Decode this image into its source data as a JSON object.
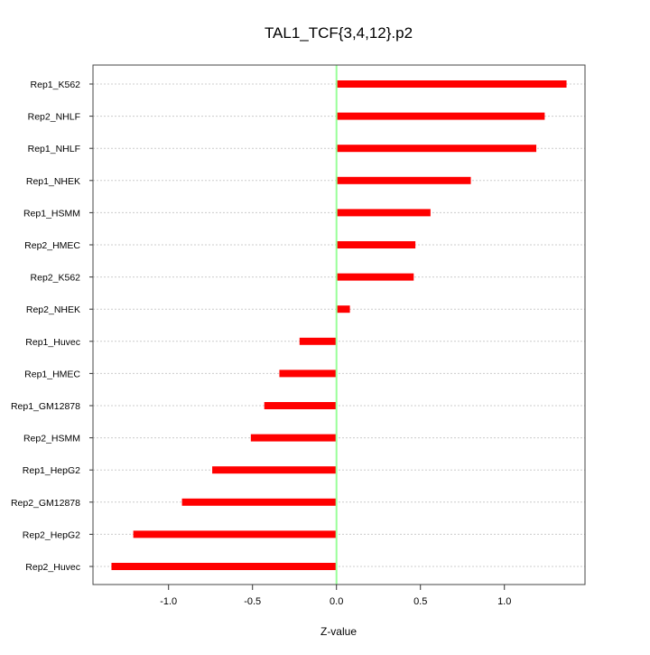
{
  "chart_data": {
    "type": "bar",
    "orientation": "horizontal",
    "title": "TAL1_TCF{3,4,12}.p2",
    "xlabel": "Z-value",
    "ylabel": "",
    "xlim": [
      -1.45,
      1.48
    ],
    "xticks": [
      -1.0,
      -0.5,
      0.0,
      0.5,
      1.0
    ],
    "xtick_labels": [
      "-1.0",
      "-0.5",
      "0.0",
      "0.5",
      "1.0"
    ],
    "grid": "horizontal dotted",
    "reference_line": 0,
    "categories": [
      "Rep1_K562",
      "Rep2_NHLF",
      "Rep1_NHLF",
      "Rep1_NHEK",
      "Rep1_HSMM",
      "Rep2_HMEC",
      "Rep2_K562",
      "Rep2_NHEK",
      "Rep1_Huvec",
      "Rep1_HMEC",
      "Rep1_GM12878",
      "Rep2_HSMM",
      "Rep1_HepG2",
      "Rep2_GM12878",
      "Rep2_HepG2",
      "Rep2_Huvec"
    ],
    "values": [
      1.37,
      1.24,
      1.19,
      0.8,
      0.56,
      0.47,
      0.46,
      0.08,
      -0.22,
      -0.34,
      -0.43,
      -0.51,
      -0.74,
      -0.92,
      -1.21,
      -1.34
    ],
    "colors": {
      "bar": "#ff0000",
      "zero_line": "#99ff99",
      "grid": "#cccccc"
    }
  }
}
